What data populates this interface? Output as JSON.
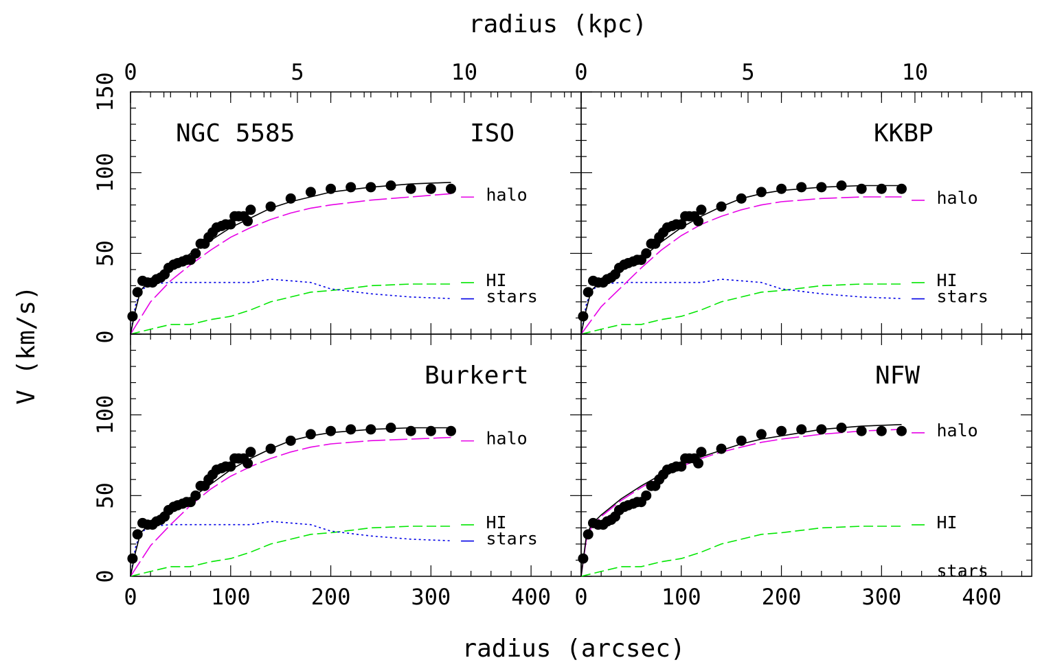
{
  "figure": {
    "top_axis_label": "radius (kpc)",
    "bottom_axis_label": "radius (arcsec)",
    "y_axis_label": "V (km/s)"
  },
  "chart_data": {
    "type": "line",
    "layout": "2x2 panels",
    "xlim_arcsec": [
      0,
      450
    ],
    "xlim_kpc": [
      0,
      13.5
    ],
    "ylim": [
      0,
      150
    ],
    "x_ticks_arcsec": [
      0,
      100,
      200,
      300,
      400
    ],
    "x_ticks_kpc": [
      0,
      5,
      10
    ],
    "y_ticks": [
      0,
      50,
      100,
      150
    ],
    "observed": {
      "name": "observed rotation curve",
      "r": [
        2,
        7,
        12,
        17,
        22,
        26,
        30,
        34,
        38,
        43,
        47,
        52,
        56,
        60,
        65,
        70,
        74,
        78,
        82,
        86,
        91,
        95,
        100,
        104,
        108,
        113,
        117,
        120,
        140,
        160,
        180,
        200,
        220,
        240,
        260,
        280,
        300,
        320
      ],
      "v": [
        11,
        26,
        33,
        32,
        32,
        34,
        35,
        37,
        41,
        43,
        44,
        45,
        46,
        46,
        50,
        56,
        56,
        60,
        63,
        66,
        67,
        68,
        68,
        73,
        73,
        73,
        70,
        77,
        79,
        84,
        88,
        90,
        91,
        91,
        92,
        90,
        90,
        90
      ]
    },
    "panels": [
      {
        "id": "iso",
        "galaxy": "NGC 5585",
        "model": "ISO",
        "labels": {
          "halo": "halo",
          "hi": "HI",
          "stars": "stars"
        },
        "total": {
          "r": [
            0,
            5,
            10,
            20,
            40,
            60,
            80,
            100,
            120,
            140,
            160,
            180,
            200,
            240,
            280,
            320
          ],
          "v": [
            0,
            15,
            27,
            34,
            41,
            50,
            58,
            66,
            72,
            78,
            82,
            85,
            88,
            91,
            93,
            94
          ]
        },
        "halo": {
          "r": [
            0,
            20,
            40,
            60,
            80,
            100,
            120,
            140,
            160,
            180,
            200,
            240,
            280,
            320
          ],
          "v": [
            0,
            20,
            33,
            43,
            52,
            60,
            66,
            71,
            75,
            78,
            80,
            83,
            85,
            87
          ]
        },
        "hi": {
          "r": [
            0,
            20,
            40,
            60,
            80,
            100,
            120,
            140,
            160,
            180,
            200,
            240,
            280,
            320
          ],
          "v": [
            0,
            3,
            6,
            6,
            9,
            11,
            15,
            20,
            23,
            26,
            27,
            30,
            31,
            31
          ]
        },
        "stars": {
          "r": [
            0,
            5,
            10,
            20,
            40,
            60,
            80,
            100,
            120,
            140,
            160,
            180,
            200,
            240,
            280,
            320
          ],
          "v": [
            0,
            18,
            27,
            31,
            32,
            32,
            32,
            32,
            32,
            34,
            33,
            32,
            28,
            25,
            23,
            22
          ]
        }
      },
      {
        "id": "kkbp",
        "galaxy": "",
        "model": "KKBP",
        "labels": {
          "halo": "halo",
          "hi": "HI",
          "stars": "stars"
        },
        "total": {
          "r": [
            0,
            5,
            10,
            20,
            40,
            60,
            80,
            100,
            120,
            140,
            160,
            180,
            200,
            240,
            280,
            320
          ],
          "v": [
            0,
            15,
            27,
            33,
            39,
            47,
            57,
            66,
            73,
            79,
            84,
            87,
            89,
            91,
            92,
            92
          ]
        },
        "halo": {
          "r": [
            0,
            20,
            40,
            60,
            80,
            100,
            120,
            140,
            160,
            180,
            200,
            240,
            280,
            320
          ],
          "v": [
            0,
            17,
            29,
            41,
            52,
            61,
            68,
            73,
            77,
            80,
            82,
            84,
            85,
            85
          ]
        },
        "hi": {
          "r": [
            0,
            20,
            40,
            60,
            80,
            100,
            120,
            140,
            160,
            180,
            200,
            240,
            280,
            320
          ],
          "v": [
            0,
            3,
            6,
            6,
            9,
            11,
            15,
            20,
            23,
            26,
            27,
            30,
            31,
            31
          ]
        },
        "stars": {
          "r": [
            0,
            5,
            10,
            20,
            40,
            60,
            80,
            100,
            120,
            140,
            160,
            180,
            200,
            240,
            280,
            320
          ],
          "v": [
            0,
            18,
            27,
            31,
            32,
            32,
            32,
            32,
            32,
            34,
            33,
            32,
            28,
            25,
            23,
            22
          ]
        }
      },
      {
        "id": "burkert",
        "galaxy": "",
        "model": "Burkert",
        "labels": {
          "halo": "halo",
          "hi": "HI",
          "stars": "stars"
        },
        "total": {
          "r": [
            0,
            5,
            10,
            20,
            40,
            60,
            80,
            100,
            120,
            140,
            160,
            180,
            200,
            240,
            280,
            320
          ],
          "v": [
            0,
            15,
            27,
            33,
            40,
            48,
            57,
            66,
            73,
            79,
            84,
            87,
            89,
            91,
            92,
            92
          ]
        },
        "halo": {
          "r": [
            0,
            20,
            40,
            60,
            80,
            100,
            120,
            140,
            160,
            180,
            200,
            240,
            280,
            320
          ],
          "v": [
            0,
            19,
            32,
            44,
            54,
            62,
            68,
            73,
            77,
            80,
            82,
            84,
            85,
            86
          ]
        },
        "hi": {
          "r": [
            0,
            20,
            40,
            60,
            80,
            100,
            120,
            140,
            160,
            180,
            200,
            240,
            280,
            320
          ],
          "v": [
            0,
            3,
            6,
            6,
            9,
            11,
            15,
            20,
            23,
            26,
            27,
            30,
            31,
            31
          ]
        },
        "stars": {
          "r": [
            0,
            5,
            10,
            20,
            40,
            60,
            80,
            100,
            120,
            140,
            160,
            180,
            200,
            240,
            280,
            320
          ],
          "v": [
            0,
            18,
            27,
            31,
            32,
            32,
            32,
            32,
            32,
            34,
            33,
            32,
            28,
            25,
            23,
            22
          ]
        }
      },
      {
        "id": "nfw",
        "galaxy": "",
        "model": "NFW",
        "labels": {
          "halo": "halo",
          "hi": "HI",
          "stars": "stars"
        },
        "total": {
          "r": [
            0,
            5,
            10,
            20,
            40,
            60,
            80,
            100,
            120,
            140,
            160,
            180,
            200,
            240,
            280,
            320
          ],
          "v": [
            0,
            24,
            32,
            38,
            48,
            56,
            63,
            69,
            74,
            78,
            82,
            85,
            87,
            91,
            93,
            94
          ]
        },
        "halo": {
          "r": [
            0,
            5,
            10,
            20,
            40,
            60,
            80,
            100,
            120,
            140,
            160,
            180,
            200,
            240,
            280,
            320
          ],
          "v": [
            0,
            22,
            30,
            37,
            47,
            55,
            62,
            68,
            73,
            77,
            80,
            83,
            85,
            88,
            90,
            91
          ]
        },
        "hi": {
          "r": [
            0,
            20,
            40,
            60,
            80,
            100,
            120,
            140,
            160,
            180,
            200,
            240,
            280,
            320
          ],
          "v": [
            0,
            3,
            6,
            6,
            9,
            11,
            15,
            20,
            23,
            26,
            27,
            30,
            31,
            31
          ]
        },
        "stars": null
      }
    ]
  }
}
